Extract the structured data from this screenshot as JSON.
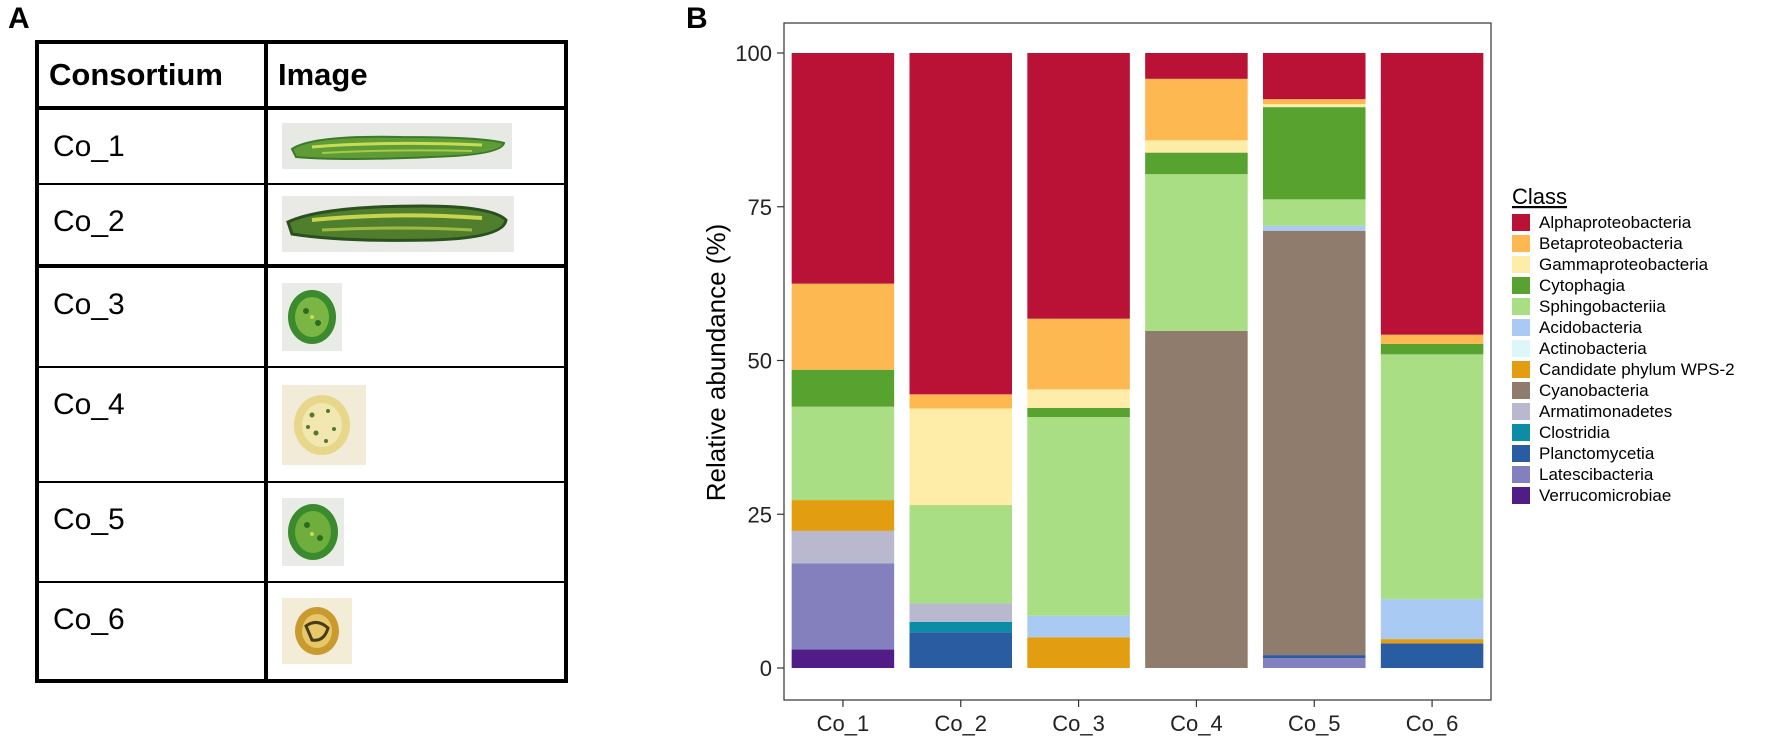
{
  "panels": {
    "a": "A",
    "b": "B"
  },
  "table": {
    "headers": [
      "Consortium",
      "Image"
    ],
    "rows": [
      {
        "name": "Co_1",
        "image": "elongated-green-thallus"
      },
      {
        "name": "Co_2",
        "image": "elongated-dark-green-thallus"
      },
      {
        "name": "Co_3",
        "image": "round-green-colony"
      },
      {
        "name": "Co_4",
        "image": "round-yellow-colony"
      },
      {
        "name": "Co_5",
        "image": "round-green-colony"
      },
      {
        "name": "Co_6",
        "image": "round-brown-colony"
      }
    ]
  },
  "chart_data": {
    "type": "bar",
    "stacked": true,
    "title": "",
    "xlabel": "",
    "ylabel": "Relative abundance (%)",
    "ylim": [
      0,
      100
    ],
    "yticks": [
      0,
      25,
      50,
      75,
      100
    ],
    "categories": [
      "Co_1",
      "Co_2",
      "Co_3",
      "Co_4",
      "Co_5",
      "Co_6"
    ],
    "legend_title": "Class",
    "legend_position": "right",
    "series": [
      {
        "name": "Alphaproteobacteria",
        "color": "#BA1237",
        "values": [
          37.5,
          55.5,
          43.2,
          4.2,
          7.5,
          45.8
        ]
      },
      {
        "name": "Betaproteobacteria",
        "color": "#FDB851",
        "values": [
          14,
          2.3,
          11.5,
          10,
          0.8,
          1.5
        ]
      },
      {
        "name": "Gammaproteobacteria",
        "color": "#FEEDA8",
        "values": [
          0,
          15.7,
          3,
          2,
          0.5,
          0
        ]
      },
      {
        "name": "Cytophagia",
        "color": "#58A22F",
        "values": [
          6,
          0,
          1.5,
          3.5,
          15,
          1.7
        ]
      },
      {
        "name": "Sphingobacteriia",
        "color": "#A9DE85",
        "values": [
          15.2,
          16,
          32.3,
          25.5,
          4.3,
          39.8
        ]
      },
      {
        "name": "Acidobacteria",
        "color": "#A9CBF3",
        "values": [
          0,
          0,
          3.5,
          0,
          0.8,
          6.5
        ]
      },
      {
        "name": "Actinobacteria",
        "color": "#DDF6F9",
        "values": [
          0,
          0,
          0,
          0,
          0,
          0
        ]
      },
      {
        "name": "Candidate phylum WPS-2",
        "color": "#E39D10",
        "values": [
          5,
          0,
          5,
          0,
          0,
          0.7
        ]
      },
      {
        "name": "Cyanobacteria",
        "color": "#8F7C6D",
        "values": [
          0,
          0,
          0,
          54.8,
          69,
          0
        ]
      },
      {
        "name": "Armatimonadetes",
        "color": "#B8B8CF",
        "values": [
          5.3,
          3,
          0,
          0,
          0,
          0
        ]
      },
      {
        "name": "Clostridia",
        "color": "#0C8DA5",
        "values": [
          0,
          1.7,
          0,
          0,
          0,
          0
        ]
      },
      {
        "name": "Planctomycetia",
        "color": "#2A5CA2",
        "values": [
          0,
          5.8,
          0,
          0,
          0.5,
          4
        ]
      },
      {
        "name": "Latescibacteria",
        "color": "#847FBD",
        "values": [
          14,
          0,
          0,
          0,
          1.6,
          0
        ]
      },
      {
        "name": "Verrucomicrobiae",
        "color": "#521C87",
        "values": [
          3,
          0,
          0,
          0,
          0,
          0
        ]
      }
    ]
  }
}
